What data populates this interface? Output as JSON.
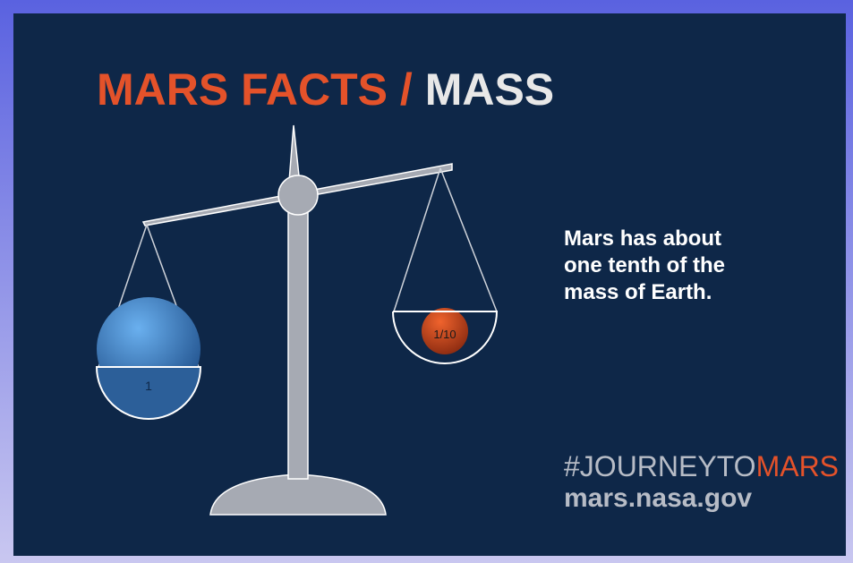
{
  "header": {
    "title_part1": "MARS FACTS /",
    "title_part2": "MASS"
  },
  "scale": {
    "left_label": "1",
    "right_label": "1/10"
  },
  "body_text": [
    "Mars has about",
    "one tenth of the",
    "mass of Earth."
  ],
  "footer": {
    "hashtag": "#JOURNEYTO",
    "hashtag_end": "MARS",
    "url": "mars.nasa.gov"
  }
}
